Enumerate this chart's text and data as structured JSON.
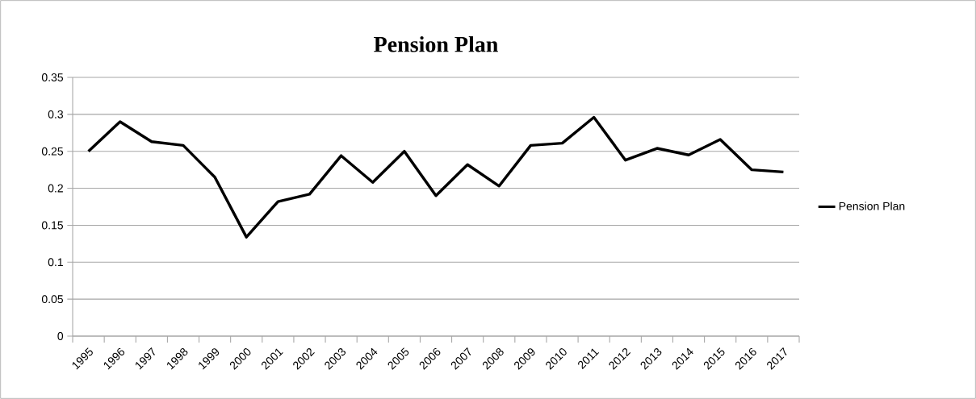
{
  "chart_data": {
    "type": "line",
    "title": "Pension Plan",
    "categories": [
      "1995",
      "1996",
      "1997",
      "1998",
      "1999",
      "2000",
      "2001",
      "2002",
      "2003",
      "2004",
      "2005",
      "2006",
      "2007",
      "2008",
      "2009",
      "2010",
      "2011",
      "2012",
      "2013",
      "2014",
      "2015",
      "2016",
      "2017"
    ],
    "series": [
      {
        "name": "Pension Plan",
        "color": "#000000",
        "values": [
          0.25,
          0.29,
          0.263,
          0.258,
          0.215,
          0.134,
          0.182,
          0.192,
          0.244,
          0.208,
          0.25,
          0.19,
          0.232,
          0.203,
          0.258,
          0.261,
          0.296,
          0.238,
          0.254,
          0.245,
          0.266,
          0.225,
          0.222
        ]
      }
    ],
    "ylim": [
      0,
      0.35
    ],
    "yticks": [
      0,
      0.05,
      0.1,
      0.15,
      0.2,
      0.25,
      0.3,
      0.35
    ],
    "grid": "y",
    "legend": "right",
    "marker": "none",
    "line_style": "solid"
  }
}
